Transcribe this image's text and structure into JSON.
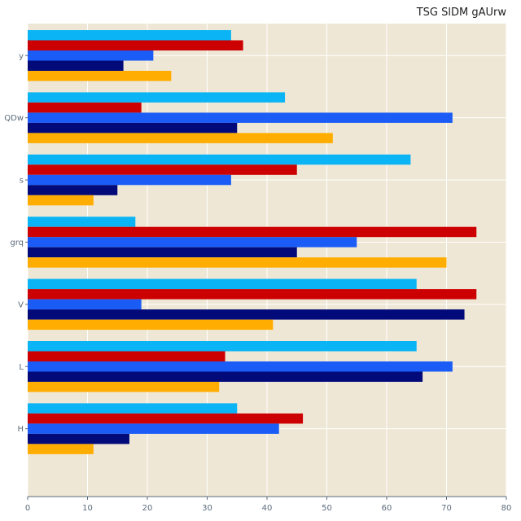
{
  "chart_data": {
    "type": "bar",
    "orientation": "horizontal",
    "title": "TSG SlDM gAUrw",
    "xlabel": "",
    "ylabel": "",
    "xlim": [
      0,
      80
    ],
    "xticks": [
      0,
      10,
      20,
      30,
      40,
      50,
      60,
      70,
      80
    ],
    "grid": true,
    "legend": "none",
    "categories": [
      "y",
      "QDw",
      "s",
      "grq",
      "V",
      "L",
      "H"
    ],
    "series": [
      {
        "color": "#0bb5f5",
        "values": [
          34,
          43,
          64,
          18,
          65,
          65,
          35
        ]
      },
      {
        "color": "#cc0000",
        "values": [
          36,
          19,
          45,
          75,
          75,
          33,
          46
        ]
      },
      {
        "color": "#1a5cf5",
        "values": [
          21,
          71,
          34,
          55,
          19,
          71,
          42
        ]
      },
      {
        "color": "#020a7a",
        "values": [
          16,
          35,
          15,
          45,
          73,
          66,
          17
        ]
      },
      {
        "color": "#ffad00",
        "values": [
          24,
          51,
          11,
          70,
          41,
          32,
          11
        ]
      }
    ],
    "colors": {
      "background": "#efe7d6",
      "grid": "#ffffff",
      "axis": "#5b6b7b"
    }
  }
}
